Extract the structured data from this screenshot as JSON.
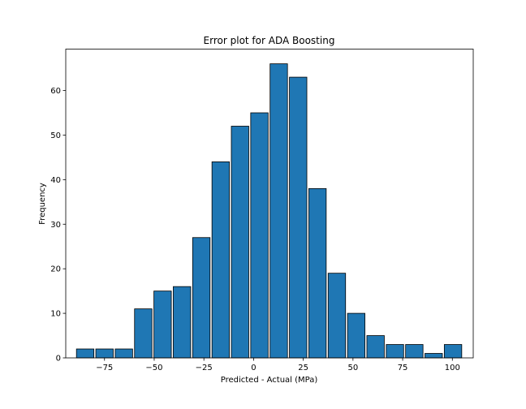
{
  "chart_data": {
    "type": "bar",
    "title": "Error plot for ADA Boosting",
    "xlabel": "Predicted - Actual (MPa)",
    "ylabel": "Frequency",
    "xlim": [
      -94.5,
      110.5
    ],
    "ylim": [
      0,
      69.3
    ],
    "xticks": [
      -75,
      -50,
      -25,
      0,
      25,
      50,
      75,
      100
    ],
    "xtick_labels": [
      "−75",
      "−50",
      "−25",
      "0",
      "25",
      "50",
      "75",
      "100"
    ],
    "yticks": [
      0,
      10,
      20,
      30,
      40,
      50,
      60
    ],
    "ytick_labels": [
      "0",
      "10",
      "20",
      "30",
      "40",
      "50",
      "60"
    ],
    "bin_edges": [
      -89.6,
      -79.86,
      -70.12,
      -60.38,
      -50.64,
      -40.9,
      -31.16,
      -21.42,
      -11.68,
      -1.94,
      7.8,
      17.54,
      27.28,
      37.02,
      46.76,
      56.5,
      66.24,
      75.98,
      85.72,
      95.46,
      105.2
    ],
    "values": [
      2,
      2,
      2,
      11,
      15,
      16,
      27,
      44,
      52,
      55,
      66,
      63,
      38,
      19,
      10,
      5,
      3,
      3,
      1,
      3
    ],
    "bar_width_fraction": 0.9,
    "bar_color": "#1f77b4",
    "edge_color": "#000000",
    "grid": false
  }
}
